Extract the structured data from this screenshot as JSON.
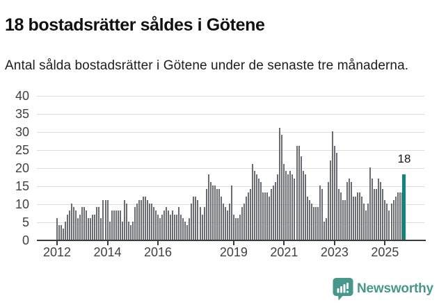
{
  "header": {
    "title": "18 bostadsrätter såldes i Götene",
    "subtitle": "Antal sålda bostadsrätter i Götene under de senaste tre månaderna."
  },
  "chart_data": {
    "type": "bar",
    "title": "18 bostadsrätter såldes i Götene",
    "subtitle": "Antal sålda bostadsrätter i Götene under de senaste tre månaderna.",
    "frequency": "monthly",
    "x_start": "2012-01",
    "x_end": "2025-10",
    "values": [
      6,
      4,
      4,
      3,
      5,
      7,
      8,
      10,
      9,
      8,
      6,
      7,
      9,
      9,
      8,
      6,
      6,
      7,
      7,
      9,
      9,
      6,
      11,
      11,
      11,
      5,
      8,
      8,
      8,
      8,
      8,
      5,
      11,
      10,
      5,
      4,
      5,
      9,
      10,
      11,
      11,
      12,
      12,
      11,
      10,
      10,
      9,
      8,
      7,
      6,
      7,
      8,
      9,
      8,
      7,
      8,
      7,
      7,
      9,
      7,
      6,
      5,
      4,
      6,
      10,
      12,
      12,
      11,
      9,
      7,
      9,
      14,
      18,
      16,
      15,
      15,
      14,
      14,
      12,
      10,
      9,
      8,
      10,
      15,
      7,
      6,
      6,
      7,
      9,
      10,
      12,
      13,
      14,
      21,
      19,
      18,
      17,
      16,
      13,
      13,
      13,
      12,
      14,
      15,
      16,
      18,
      31,
      29,
      21,
      19,
      18,
      19,
      18,
      17,
      26,
      26,
      23,
      19,
      18,
      12,
      11,
      10,
      9,
      9,
      9,
      15,
      14,
      5,
      6,
      16,
      22,
      30,
      26,
      24,
      14,
      13,
      11,
      11,
      16,
      17,
      16,
      12,
      12,
      13,
      13,
      12,
      10,
      8,
      10,
      20,
      17,
      14,
      14,
      17,
      16,
      14,
      11,
      10,
      8,
      10,
      11,
      12,
      13,
      13,
      13,
      18
    ],
    "highlight_last": {
      "value": 18,
      "label": "18"
    },
    "ylim": [
      0,
      40
    ],
    "yticks": [
      0,
      5,
      10,
      15,
      20,
      25,
      30,
      35,
      40
    ],
    "xtick_labels": [
      "2012",
      "2014",
      "2016",
      "2019",
      "2021",
      "2023",
      "2025"
    ],
    "xtick_month_indices": [
      0,
      24,
      48,
      84,
      108,
      132,
      156
    ],
    "grid": true,
    "legend": "none",
    "colors": {
      "bar": "#6b6b74",
      "highlight": "#11847b",
      "grid": "#dcdcdc",
      "axis": "#3a3a3a",
      "brand": "#47978d"
    }
  },
  "footer": {
    "brand": "Newsworthy"
  }
}
